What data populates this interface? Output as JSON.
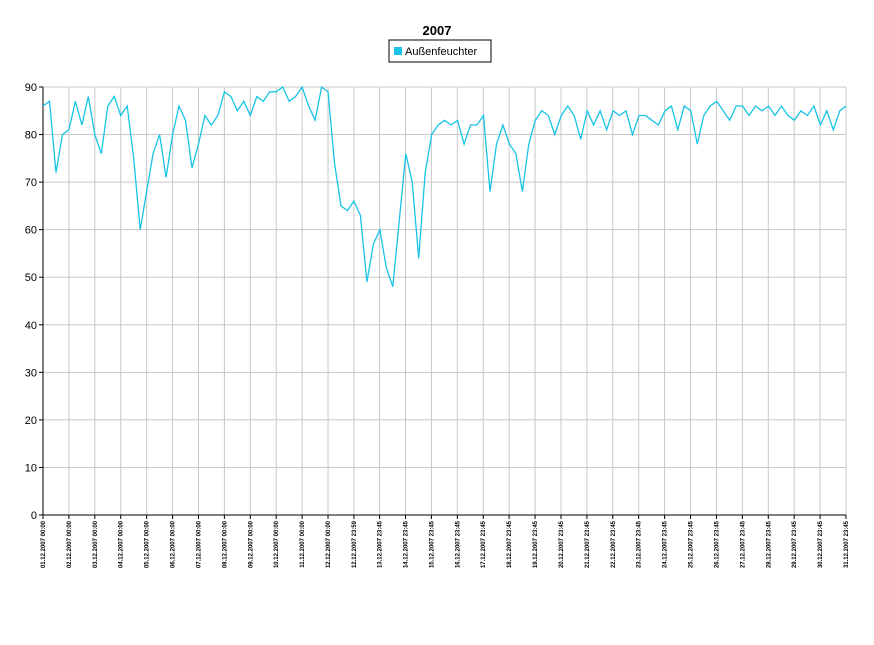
{
  "chart_data": {
    "type": "line",
    "title": "2007",
    "x": [
      "01.12.2007 00:00",
      "01.12.2007 06:00",
      "01.12.2007 12:00",
      "01.12.2007 18:00",
      "02.12.2007 00:00",
      "02.12.2007 06:00",
      "02.12.2007 12:00",
      "02.12.2007 18:00",
      "03.12.2007 00:00",
      "03.12.2007 06:00",
      "03.12.2007 12:00",
      "03.12.2007 18:00",
      "04.12.2007 00:00",
      "04.12.2007 06:00",
      "04.12.2007 12:00",
      "04.12.2007 18:00",
      "05.12.2007 00:00",
      "05.12.2007 06:00",
      "05.12.2007 12:00",
      "05.12.2007 18:00",
      "06.12.2007 00:00",
      "06.12.2007 06:00",
      "06.12.2007 12:00",
      "06.12.2007 18:00",
      "07.12.2007 00:00",
      "07.12.2007 06:00",
      "07.12.2007 12:00",
      "07.12.2007 18:00",
      "08.12.2007 00:00",
      "08.12.2007 06:00",
      "08.12.2007 12:00",
      "08.12.2007 18:00",
      "09.12.2007 00:00",
      "09.12.2007 06:00",
      "09.12.2007 12:00",
      "09.12.2007 18:00",
      "10.12.2007 00:00",
      "10.12.2007 06:00",
      "10.12.2007 12:00",
      "10.12.2007 18:00",
      "11.12.2007 00:00",
      "11.12.2007 06:00",
      "11.12.2007 12:00",
      "11.12.2007 18:00",
      "12.12.2007 00:00",
      "12.12.2007 06:00",
      "12.12.2007 12:00",
      "12.12.2007 18:00",
      "13.12.2007 00:00",
      "13.12.2007 06:00",
      "13.12.2007 12:00",
      "13.12.2007 18:00",
      "14.12.2007 00:00",
      "14.12.2007 06:00",
      "14.12.2007 12:00",
      "14.12.2007 18:00",
      "15.12.2007 00:00",
      "15.12.2007 06:00",
      "15.12.2007 12:00",
      "15.12.2007 18:00",
      "16.12.2007 00:00",
      "16.12.2007 06:00",
      "16.12.2007 12:00",
      "16.12.2007 18:00",
      "17.12.2007 00:00",
      "17.12.2007 06:00",
      "17.12.2007 12:00",
      "17.12.2007 18:00",
      "18.12.2007 00:00",
      "18.12.2007 06:00",
      "18.12.2007 12:00",
      "18.12.2007 18:00",
      "19.12.2007 00:00",
      "19.12.2007 06:00",
      "19.12.2007 12:00",
      "19.12.2007 18:00",
      "20.12.2007 00:00",
      "20.12.2007 06:00",
      "20.12.2007 12:00",
      "20.12.2007 18:00",
      "21.12.2007 00:00",
      "21.12.2007 06:00",
      "21.12.2007 12:00",
      "21.12.2007 18:00",
      "22.12.2007 00:00",
      "22.12.2007 06:00",
      "22.12.2007 12:00",
      "22.12.2007 18:00",
      "23.12.2007 00:00",
      "23.12.2007 06:00",
      "23.12.2007 12:00",
      "23.12.2007 18:00",
      "24.12.2007 00:00",
      "24.12.2007 06:00",
      "24.12.2007 12:00",
      "24.12.2007 18:00",
      "25.12.2007 00:00",
      "25.12.2007 06:00",
      "25.12.2007 12:00",
      "25.12.2007 18:00",
      "26.12.2007 00:00",
      "26.12.2007 06:00",
      "26.12.2007 12:00",
      "26.12.2007 18:00",
      "27.12.2007 00:00",
      "27.12.2007 06:00",
      "27.12.2007 12:00",
      "27.12.2007 18:00",
      "28.12.2007 00:00",
      "28.12.2007 06:00",
      "28.12.2007 12:00",
      "28.12.2007 18:00",
      "29.12.2007 00:00",
      "29.12.2007 06:00",
      "29.12.2007 12:00",
      "29.12.2007 18:00",
      "30.12.2007 00:00",
      "30.12.2007 06:00",
      "30.12.2007 12:00",
      "30.12.2007 18:00",
      "31.12.2007 00:00",
      "31.12.2007 06:00",
      "31.12.2007 12:00",
      "31.12.2007 18:00",
      "31.12.2007 23:45"
    ],
    "series": [
      {
        "name": "Außenfeuchter",
        "color": "#18c4e6",
        "values": [
          86,
          87,
          72,
          80,
          81,
          87,
          82,
          88,
          80,
          76,
          86,
          88,
          84,
          86,
          75,
          60,
          68,
          76,
          80,
          71,
          80,
          86,
          83,
          73,
          78,
          84,
          82,
          84,
          89,
          88,
          85,
          87,
          84,
          88,
          87,
          89,
          89,
          90,
          87,
          88,
          90,
          86,
          83,
          90,
          89,
          74,
          65,
          64,
          66,
          63,
          49,
          57,
          60,
          52,
          48,
          62,
          76,
          70,
          54,
          72,
          80,
          82,
          83,
          82,
          83,
          78,
          82,
          82,
          84,
          68,
          78,
          82,
          78,
          76,
          68,
          78,
          83,
          85,
          84,
          80,
          84,
          86,
          84,
          79,
          85,
          82,
          85,
          81,
          85,
          84,
          85,
          80,
          84,
          84,
          83,
          82,
          85,
          86,
          81,
          86,
          85,
          78,
          84,
          86,
          87,
          85,
          83,
          86,
          86,
          84,
          86,
          85,
          86,
          84,
          86,
          84,
          83,
          85,
          84,
          86,
          82,
          85,
          81,
          85,
          86
        ]
      }
    ],
    "xlim": [
      "01.12.2007 00:00",
      "31.12.2007 23:45"
    ],
    "xticks": [
      "01.12.2007 00:00",
      "02.12.2007 00:00",
      "03.12.2007 00:00",
      "04.12.2007 00:00",
      "05.12.2007 00:00",
      "06.12.2007 00:00",
      "07.12.2007 00:00",
      "08.12.2007 00:00",
      "09.12.2007 00:00",
      "10.12.2007 00:00",
      "11.12.2007 00:00",
      "12.12.2007 00:00",
      "12.12.2007 23:59",
      "13.12.2007 23:45",
      "14.12.2007 23:45",
      "15.12.2007 23:45",
      "16.12.2007 23:45",
      "17.12.2007 23:45",
      "18.12.2007 23:45",
      "19.12.2007 23:45",
      "20.12.2007 23:45",
      "21.12.2007 23:45",
      "22.12.2007 23:45",
      "23.12.2007 23:45",
      "24.12.2007 23:45",
      "25.12.2007 23:45",
      "26.12.2007 23:45",
      "27.12.2007 23:45",
      "28.12.2007 23:45",
      "29.12.2007 23:45",
      "30.12.2007 23:45",
      "31.12.2007 23:45"
    ],
    "ylim": [
      0,
      90
    ],
    "yticks": [
      0,
      10,
      20,
      30,
      40,
      50,
      60,
      70,
      80,
      90
    ],
    "grid": true
  }
}
